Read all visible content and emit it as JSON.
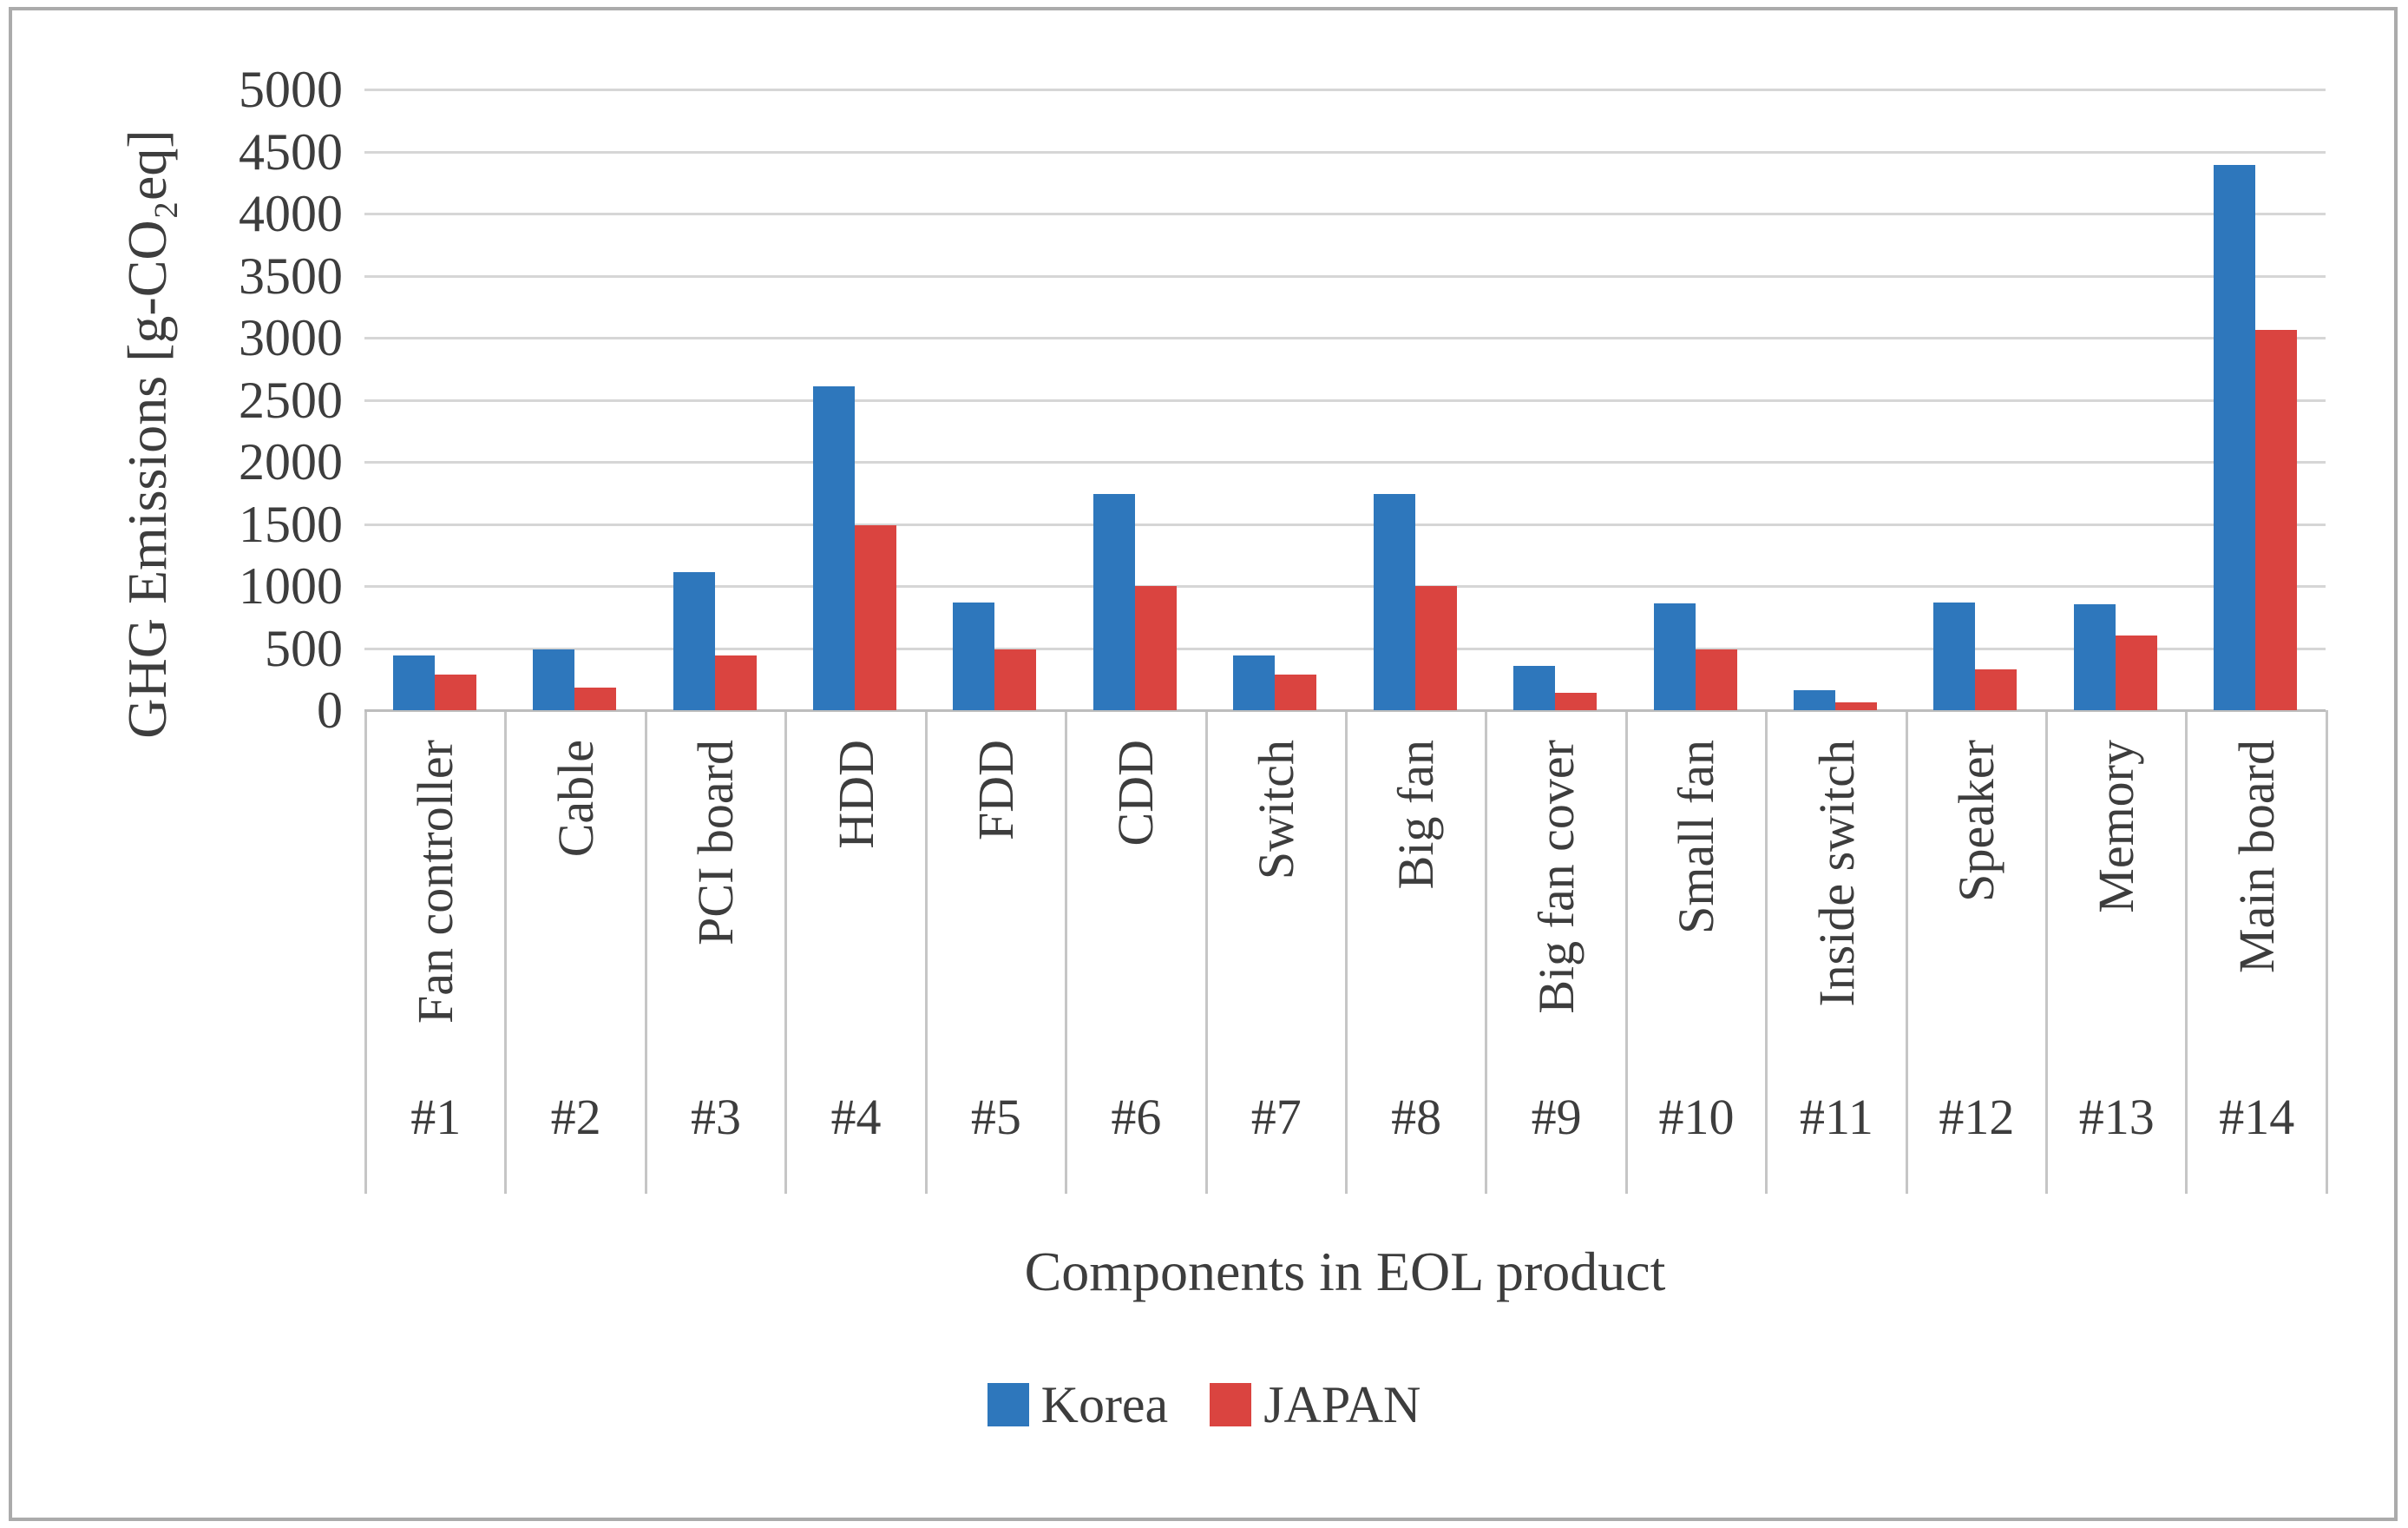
{
  "chart_data": {
    "type": "bar",
    "title": "",
    "xlabel": "Components in EOL product",
    "ylabel": "GHG Emissions [g-CO₂eq]",
    "ylim": [
      0,
      5000
    ],
    "ytick_step": 500,
    "yticks": [
      0,
      500,
      1000,
      1500,
      2000,
      2500,
      3000,
      3500,
      4000,
      4500,
      5000
    ],
    "grid": true,
    "legend_position": "bottom-center",
    "categories": [
      "Fan controller",
      "Cable",
      "PCI board",
      "HDD",
      "FDD",
      "CDD",
      "Switch",
      "Big fan",
      "Big fan cover",
      "Small fan",
      "Inside switch",
      "Speaker",
      "Memory",
      "Main board"
    ],
    "category_ids": [
      "#1",
      "#2",
      "#3",
      "#4",
      "#5",
      "#6",
      "#7",
      "#8",
      "#9",
      "#10",
      "#11",
      "#12",
      "#13",
      "#14"
    ],
    "series": [
      {
        "name": "Korea",
        "color": "#2e77bc",
        "values": [
          440,
          490,
          1110,
          2610,
          870,
          1740,
          440,
          1740,
          360,
          860,
          160,
          870,
          850,
          4390
        ]
      },
      {
        "name": "JAPAN",
        "color": "#da4440",
        "values": [
          290,
          180,
          440,
          1490,
          490,
          1000,
          290,
          1000,
          140,
          490,
          60,
          330,
          600,
          3060
        ]
      }
    ]
  },
  "colors": {
    "gridline": "#d6d6d6",
    "axis_line": "#bdbdbd",
    "category_border": "#c6c6c6",
    "text": "#3d3d3d",
    "figure_border": "#ababab"
  }
}
